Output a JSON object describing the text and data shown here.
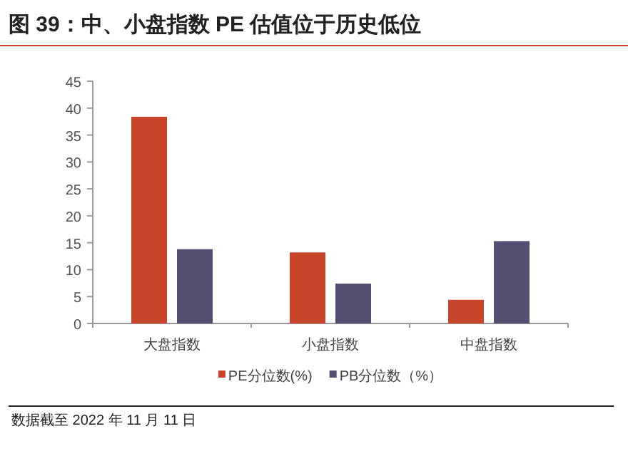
{
  "chart_data": {
    "type": "bar",
    "title": "图 39：中、小盘指数 PE 估值位于历史低位",
    "categories": [
      "大盘指数",
      "小盘指数",
      "中盘指数"
    ],
    "series": [
      {
        "name": "PE分位数(%)",
        "color": "#c8442a",
        "values": [
          38.4,
          13.2,
          4.4
        ]
      },
      {
        "name": "PB分位数（%）",
        "color": "#564f72",
        "values": [
          13.8,
          7.4,
          15.3
        ]
      }
    ],
    "ylim": [
      0,
      45
    ],
    "yticks": [
      0,
      5,
      10,
      15,
      20,
      25,
      30,
      35,
      40,
      45
    ],
    "grid": false,
    "legend": "bottom",
    "annotations": [
      "数据截至 2022 年 11 月 11 日"
    ]
  }
}
